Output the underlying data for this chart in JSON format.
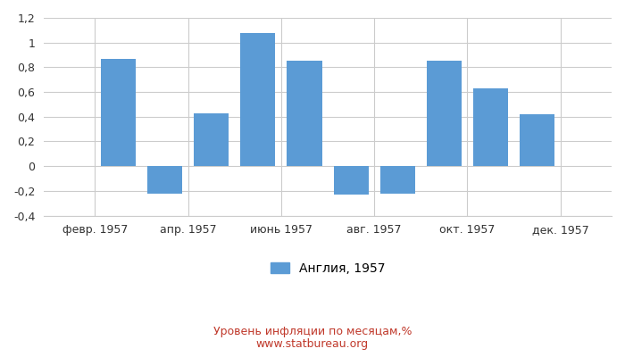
{
  "values_12": [
    0.0,
    0.87,
    -0.22,
    0.43,
    1.08,
    0.85,
    -0.23,
    -0.22,
    0.85,
    0.63,
    0.42,
    0.0
  ],
  "bar_color": "#5b9bd5",
  "ylim": [
    -0.4,
    1.2
  ],
  "yticks": [
    -0.4,
    -0.2,
    0.0,
    0.2,
    0.4,
    0.6,
    0.8,
    1.0,
    1.2
  ],
  "x_tick_positions": [
    1.5,
    3.5,
    5.5,
    7.5,
    9.5,
    11.5
  ],
  "x_tick_labels": [
    "февр. 1957",
    "апр. 1957",
    "июнь 1957",
    "авг. 1957",
    "окт. 1957",
    "дек. 1957"
  ],
  "legend_label": "Англия, 1957",
  "subtitle": "Уровень инфляции по месяцам,%",
  "watermark": "www.statbureau.org",
  "subtitle_color": "#c0392b",
  "watermark_color": "#c0392b",
  "background_color": "#ffffff",
  "grid_color": "#cccccc",
  "bar_width": 0.75
}
